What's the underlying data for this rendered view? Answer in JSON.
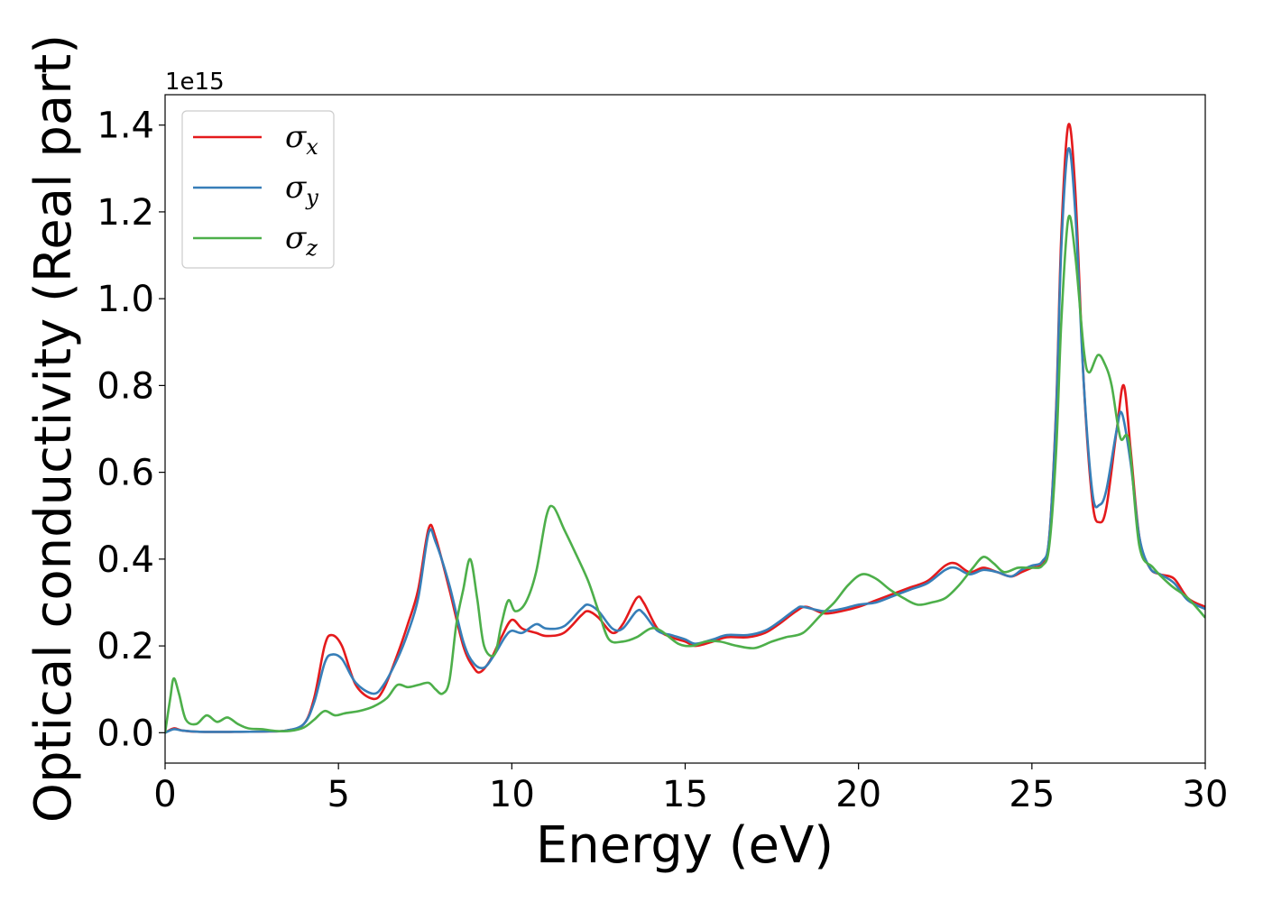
{
  "chart_data": {
    "type": "line",
    "xlabel": "Energy (eV)",
    "ylabel": "Optical conductivity (Real part)",
    "y_offset_label": "1e15",
    "xlim": [
      0,
      30
    ],
    "ylim": [
      -0.07,
      1.47
    ],
    "x_ticks": [
      0,
      5,
      10,
      15,
      20,
      25,
      30
    ],
    "x_tick_labels": [
      "0",
      "5",
      "10",
      "15",
      "20",
      "25",
      "30"
    ],
    "y_ticks": [
      0.0,
      0.2,
      0.4,
      0.6,
      0.8,
      1.0,
      1.2,
      1.4
    ],
    "y_tick_labels": [
      "0.0",
      "0.2",
      "0.4",
      "0.6",
      "0.8",
      "1.0",
      "1.2",
      "1.4"
    ],
    "grid": false,
    "legend_position": "top-left",
    "series": [
      {
        "name": "σx",
        "symbol": "σ",
        "subscript": "x",
        "color": "#e41a1c",
        "points": [
          [
            0,
            0
          ],
          [
            0.25,
            0.01
          ],
          [
            0.5,
            0.005
          ],
          [
            1,
            0.002
          ],
          [
            2,
            0.002
          ],
          [
            3,
            0.003
          ],
          [
            3.5,
            0.005
          ],
          [
            4,
            0.02
          ],
          [
            4.3,
            0.08
          ],
          [
            4.6,
            0.2
          ],
          [
            4.8,
            0.225
          ],
          [
            5.1,
            0.2
          ],
          [
            5.5,
            0.11
          ],
          [
            6,
            0.078
          ],
          [
            6.3,
            0.1
          ],
          [
            6.7,
            0.18
          ],
          [
            7,
            0.25
          ],
          [
            7.3,
            0.33
          ],
          [
            7.6,
            0.47
          ],
          [
            7.8,
            0.45
          ],
          [
            8.2,
            0.33
          ],
          [
            8.6,
            0.2
          ],
          [
            8.9,
            0.15
          ],
          [
            9.1,
            0.14
          ],
          [
            9.4,
            0.17
          ],
          [
            9.7,
            0.22
          ],
          [
            10,
            0.26
          ],
          [
            10.3,
            0.24
          ],
          [
            10.7,
            0.23
          ],
          [
            11,
            0.223
          ],
          [
            11.5,
            0.23
          ],
          [
            12,
            0.27
          ],
          [
            12.2,
            0.28
          ],
          [
            12.5,
            0.265
          ],
          [
            12.9,
            0.23
          ],
          [
            13.2,
            0.25
          ],
          [
            13.6,
            0.31
          ],
          [
            13.8,
            0.3
          ],
          [
            14.2,
            0.24
          ],
          [
            14.6,
            0.22
          ],
          [
            15,
            0.21
          ],
          [
            15.3,
            0.2
          ],
          [
            15.8,
            0.21
          ],
          [
            16.2,
            0.22
          ],
          [
            16.8,
            0.22
          ],
          [
            17.3,
            0.23
          ],
          [
            17.7,
            0.25
          ],
          [
            18.2,
            0.28
          ],
          [
            18.5,
            0.29
          ],
          [
            19,
            0.275
          ],
          [
            19.5,
            0.28
          ],
          [
            20,
            0.29
          ],
          [
            20.5,
            0.305
          ],
          [
            21,
            0.32
          ],
          [
            21.5,
            0.335
          ],
          [
            22,
            0.35
          ],
          [
            22.5,
            0.385
          ],
          [
            22.8,
            0.39
          ],
          [
            23.2,
            0.37
          ],
          [
            23.6,
            0.38
          ],
          [
            24,
            0.37
          ],
          [
            24.4,
            0.36
          ],
          [
            24.7,
            0.37
          ],
          [
            25,
            0.38
          ],
          [
            25.3,
            0.39
          ],
          [
            25.5,
            0.45
          ],
          [
            25.7,
            0.75
          ],
          [
            25.85,
            1.15
          ],
          [
            26.05,
            1.4
          ],
          [
            26.25,
            1.25
          ],
          [
            26.5,
            0.8
          ],
          [
            26.75,
            0.53
          ],
          [
            26.95,
            0.485
          ],
          [
            27.15,
            0.52
          ],
          [
            27.45,
            0.7
          ],
          [
            27.65,
            0.8
          ],
          [
            27.85,
            0.65
          ],
          [
            28.1,
            0.45
          ],
          [
            28.4,
            0.38
          ],
          [
            28.7,
            0.365
          ],
          [
            29.1,
            0.355
          ],
          [
            29.5,
            0.31
          ],
          [
            30,
            0.29
          ]
        ]
      },
      {
        "name": "σy",
        "symbol": "σ",
        "subscript": "y",
        "color": "#377eb8",
        "points": [
          [
            0,
            0
          ],
          [
            0.25,
            0.008
          ],
          [
            0.5,
            0.005
          ],
          [
            1,
            0.002
          ],
          [
            2,
            0.002
          ],
          [
            3,
            0.003
          ],
          [
            3.5,
            0.005
          ],
          [
            4,
            0.02
          ],
          [
            4.3,
            0.07
          ],
          [
            4.6,
            0.16
          ],
          [
            4.8,
            0.18
          ],
          [
            5.1,
            0.17
          ],
          [
            5.5,
            0.115
          ],
          [
            6,
            0.09
          ],
          [
            6.3,
            0.11
          ],
          [
            6.7,
            0.17
          ],
          [
            7,
            0.23
          ],
          [
            7.3,
            0.31
          ],
          [
            7.6,
            0.46
          ],
          [
            7.8,
            0.44
          ],
          [
            8.2,
            0.34
          ],
          [
            8.6,
            0.21
          ],
          [
            8.9,
            0.16
          ],
          [
            9.2,
            0.15
          ],
          [
            9.5,
            0.18
          ],
          [
            9.8,
            0.22
          ],
          [
            10,
            0.235
          ],
          [
            10.3,
            0.23
          ],
          [
            10.7,
            0.25
          ],
          [
            11,
            0.24
          ],
          [
            11.5,
            0.245
          ],
          [
            12,
            0.285
          ],
          [
            12.2,
            0.295
          ],
          [
            12.5,
            0.28
          ],
          [
            12.9,
            0.24
          ],
          [
            13.2,
            0.24
          ],
          [
            13.6,
            0.28
          ],
          [
            13.8,
            0.275
          ],
          [
            14.2,
            0.235
          ],
          [
            14.6,
            0.225
          ],
          [
            15,
            0.215
          ],
          [
            15.3,
            0.205
          ],
          [
            15.8,
            0.215
          ],
          [
            16.2,
            0.225
          ],
          [
            16.8,
            0.225
          ],
          [
            17.3,
            0.235
          ],
          [
            17.7,
            0.255
          ],
          [
            18.2,
            0.285
          ],
          [
            18.4,
            0.29
          ],
          [
            19,
            0.28
          ],
          [
            19.5,
            0.285
          ],
          [
            20,
            0.295
          ],
          [
            20.5,
            0.3
          ],
          [
            21,
            0.315
          ],
          [
            21.5,
            0.33
          ],
          [
            22,
            0.345
          ],
          [
            22.5,
            0.375
          ],
          [
            22.8,
            0.38
          ],
          [
            23.2,
            0.365
          ],
          [
            23.6,
            0.375
          ],
          [
            24,
            0.37
          ],
          [
            24.4,
            0.36
          ],
          [
            24.7,
            0.375
          ],
          [
            25,
            0.385
          ],
          [
            25.3,
            0.395
          ],
          [
            25.5,
            0.45
          ],
          [
            25.7,
            0.74
          ],
          [
            25.85,
            1.12
          ],
          [
            26.05,
            1.345
          ],
          [
            26.25,
            1.2
          ],
          [
            26.5,
            0.8
          ],
          [
            26.75,
            0.55
          ],
          [
            26.95,
            0.525
          ],
          [
            27.15,
            0.56
          ],
          [
            27.45,
            0.7
          ],
          [
            27.6,
            0.735
          ],
          [
            27.85,
            0.62
          ],
          [
            28.1,
            0.45
          ],
          [
            28.4,
            0.38
          ],
          [
            28.7,
            0.365
          ],
          [
            29.1,
            0.345
          ],
          [
            29.5,
            0.305
          ],
          [
            30,
            0.285
          ]
        ]
      },
      {
        "name": "σz",
        "symbol": "σ",
        "subscript": "z",
        "color": "#4daf4a",
        "points": [
          [
            0,
            0
          ],
          [
            0.15,
            0.08
          ],
          [
            0.25,
            0.125
          ],
          [
            0.4,
            0.09
          ],
          [
            0.6,
            0.03
          ],
          [
            0.9,
            0.02
          ],
          [
            1.2,
            0.04
          ],
          [
            1.5,
            0.025
          ],
          [
            1.8,
            0.035
          ],
          [
            2.1,
            0.02
          ],
          [
            2.4,
            0.01
          ],
          [
            2.8,
            0.008
          ],
          [
            3.2,
            0.004
          ],
          [
            3.6,
            0.004
          ],
          [
            4,
            0.012
          ],
          [
            4.3,
            0.03
          ],
          [
            4.6,
            0.05
          ],
          [
            4.9,
            0.04
          ],
          [
            5.2,
            0.045
          ],
          [
            5.6,
            0.05
          ],
          [
            6,
            0.06
          ],
          [
            6.4,
            0.08
          ],
          [
            6.7,
            0.11
          ],
          [
            7,
            0.105
          ],
          [
            7.3,
            0.11
          ],
          [
            7.6,
            0.115
          ],
          [
            7.8,
            0.1
          ],
          [
            8,
            0.09
          ],
          [
            8.2,
            0.12
          ],
          [
            8.4,
            0.25
          ],
          [
            8.6,
            0.33
          ],
          [
            8.8,
            0.4
          ],
          [
            9,
            0.31
          ],
          [
            9.2,
            0.2
          ],
          [
            9.5,
            0.18
          ],
          [
            9.7,
            0.25
          ],
          [
            9.9,
            0.305
          ],
          [
            10.1,
            0.28
          ],
          [
            10.4,
            0.3
          ],
          [
            10.7,
            0.37
          ],
          [
            11,
            0.5
          ],
          [
            11.2,
            0.52
          ],
          [
            11.5,
            0.47
          ],
          [
            11.8,
            0.42
          ],
          [
            12.2,
            0.35
          ],
          [
            12.5,
            0.28
          ],
          [
            12.8,
            0.215
          ],
          [
            13.2,
            0.21
          ],
          [
            13.6,
            0.22
          ],
          [
            14,
            0.24
          ],
          [
            14.3,
            0.235
          ],
          [
            14.8,
            0.205
          ],
          [
            15.2,
            0.2
          ],
          [
            15.6,
            0.21
          ],
          [
            16,
            0.21
          ],
          [
            16.5,
            0.2
          ],
          [
            17,
            0.195
          ],
          [
            17.5,
            0.21
          ],
          [
            17.9,
            0.22
          ],
          [
            18.4,
            0.23
          ],
          [
            18.9,
            0.27
          ],
          [
            19.3,
            0.3
          ],
          [
            19.7,
            0.34
          ],
          [
            20.1,
            0.365
          ],
          [
            20.5,
            0.355
          ],
          [
            20.9,
            0.33
          ],
          [
            21.3,
            0.31
          ],
          [
            21.7,
            0.295
          ],
          [
            22.1,
            0.3
          ],
          [
            22.5,
            0.31
          ],
          [
            22.9,
            0.34
          ],
          [
            23.3,
            0.38
          ],
          [
            23.6,
            0.405
          ],
          [
            23.9,
            0.39
          ],
          [
            24.2,
            0.37
          ],
          [
            24.6,
            0.38
          ],
          [
            25,
            0.38
          ],
          [
            25.3,
            0.385
          ],
          [
            25.5,
            0.43
          ],
          [
            25.7,
            0.65
          ],
          [
            25.85,
            0.95
          ],
          [
            26.05,
            1.185
          ],
          [
            26.25,
            1.1
          ],
          [
            26.5,
            0.88
          ],
          [
            26.65,
            0.83
          ],
          [
            26.9,
            0.87
          ],
          [
            27.1,
            0.85
          ],
          [
            27.3,
            0.8
          ],
          [
            27.55,
            0.68
          ],
          [
            27.8,
            0.67
          ],
          [
            28.1,
            0.43
          ],
          [
            28.5,
            0.38
          ],
          [
            29,
            0.34
          ],
          [
            29.5,
            0.31
          ],
          [
            30,
            0.265
          ]
        ]
      }
    ]
  }
}
